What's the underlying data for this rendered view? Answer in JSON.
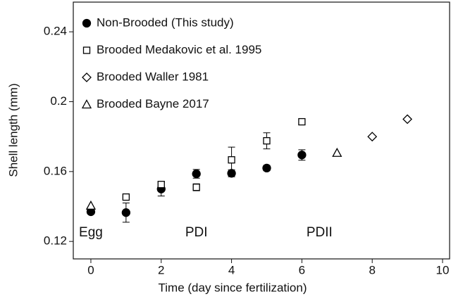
{
  "chart_data": {
    "type": "scatter",
    "x_label": "Time (day since fertilization)",
    "y_label": "Shell length (mm)",
    "xlim": [
      -0.5,
      10.2
    ],
    "ylim": [
      0.11,
      0.257
    ],
    "xticks": [
      0,
      2,
      4,
      6,
      8,
      10
    ],
    "yticks": [
      0.12,
      0.16,
      0.2,
      0.24
    ],
    "series": [
      {
        "name": "Non-Brooded (This study)",
        "color": "#000000",
        "marker": "circle",
        "filled": true,
        "x": [
          0,
          1,
          2,
          3,
          4,
          5,
          6
        ],
        "values": [
          0.137,
          0.1365,
          0.15,
          0.1587,
          0.159,
          0.162,
          0.1695
        ],
        "errors": [
          0.001,
          0.0055,
          0.004,
          0.0025,
          0.002,
          0.0015,
          0.003
        ]
      },
      {
        "name": "Brooded Medakovic et al. 1995",
        "color": "#000000",
        "marker": "square",
        "filled": false,
        "x": [
          1,
          2,
          3,
          4,
          5,
          6
        ],
        "values": [
          0.1454,
          0.1526,
          0.151,
          0.1667,
          0.1776,
          0.1885
        ],
        "errors": [
          null,
          0.0015,
          0.002,
          0.0073,
          0.0046,
          null
        ]
      },
      {
        "name": "Brooded Waller 1981",
        "color": "#000000",
        "marker": "diamond",
        "filled": false,
        "x": [
          8,
          9
        ],
        "values": [
          0.18,
          0.19
        ]
      },
      {
        "name": "Brooded Bayne 2017",
        "color": "#000000",
        "marker": "triangle",
        "filled": false,
        "x": [
          0,
          7
        ],
        "values": [
          0.1405,
          0.1707
        ]
      }
    ],
    "annotations": [
      {
        "text": "Egg",
        "x": 0,
        "y": 0.125
      },
      {
        "text": "PDI",
        "x": 3,
        "y": 0.125
      },
      {
        "text": "PDII",
        "x": 6.5,
        "y": 0.125
      }
    ]
  }
}
